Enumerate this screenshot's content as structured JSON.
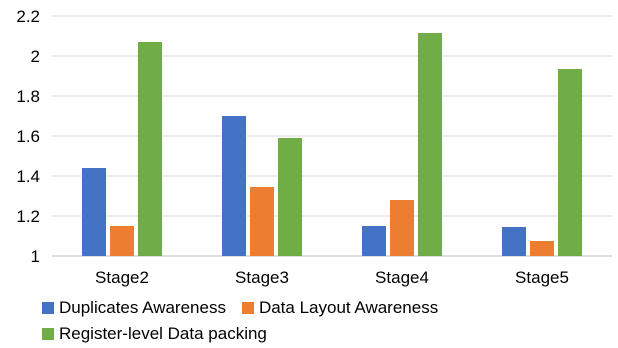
{
  "chart_data": {
    "type": "bar",
    "categories": [
      "Stage2",
      "Stage3",
      "Stage4",
      "Stage5"
    ],
    "series": [
      {
        "name": "Duplicates Awareness",
        "color": "#4472C4",
        "values": [
          1.44,
          1.7,
          1.15,
          1.145
        ]
      },
      {
        "name": "Data Layout Awareness",
        "color": "#ED7D31",
        "values": [
          1.15,
          1.345,
          1.28,
          1.075
        ]
      },
      {
        "name": "Register-level Data packing",
        "color": "#70AD47",
        "values": [
          2.07,
          1.59,
          2.115,
          1.935
        ]
      }
    ],
    "yticks": [
      "1",
      "1.2",
      "1.4",
      "1.6",
      "1.8",
      "2",
      "2.2"
    ],
    "ylim": [
      1,
      2.2
    ],
    "grid": true,
    "legend_position": "bottom"
  }
}
